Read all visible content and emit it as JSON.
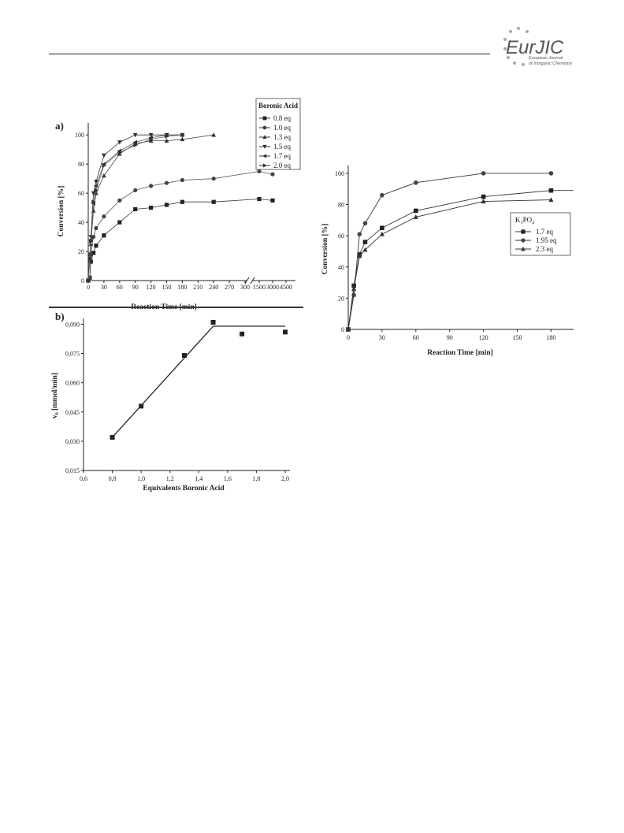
{
  "journal": {
    "logo_text": "EurJIC",
    "subtitle_1": "European Journal",
    "subtitle_2": "of Inorganic Chemistry"
  },
  "chart_data": [
    {
      "id": "a",
      "type": "scatter",
      "panel_label": "a)",
      "xlabel": "Reaction Time [min]",
      "ylabel": "Conversion [%]",
      "ylim": [
        0,
        105
      ],
      "x_broken_axis": true,
      "x_ticks_first_segment": [
        "0",
        "30",
        "60",
        "90",
        "120",
        "150",
        "180",
        "210",
        "240",
        "270",
        "300"
      ],
      "x_ticks_second_segment": [
        "1500",
        "3000",
        "4500"
      ],
      "y_ticks": [
        "0",
        "20",
        "40",
        "60",
        "80",
        "100"
      ],
      "legend_title": "Boronic Acid",
      "legend_position": "top-right",
      "series": [
        {
          "name": "0.8 eq",
          "marker": "square",
          "connected": true,
          "x": [
            0,
            3,
            5,
            10,
            15,
            30,
            60,
            90,
            120,
            150,
            180,
            240,
            1500,
            3000
          ],
          "y": [
            0,
            2,
            13,
            19,
            24,
            31,
            40,
            49,
            50,
            52,
            54,
            54,
            56,
            55
          ]
        },
        {
          "name": "1.0 eq",
          "marker": "circle",
          "connected": true,
          "x": [
            0,
            3,
            5,
            10,
            15,
            30,
            60,
            90,
            120,
            150,
            180,
            240,
            1500,
            3000
          ],
          "y": [
            0,
            2,
            18,
            30,
            36,
            44,
            55,
            62,
            65,
            67,
            69,
            70,
            75,
            73
          ]
        },
        {
          "name": "1.3 eq",
          "marker": "triangle-up",
          "connected": true,
          "x": [
            0,
            3,
            5,
            10,
            15,
            30,
            60,
            90,
            120,
            150,
            180,
            240
          ],
          "y": [
            0,
            14,
            25,
            48,
            60,
            72,
            87,
            94,
            96,
            96,
            97,
            100
          ]
        },
        {
          "name": "1.5 eq",
          "marker": "triangle-down",
          "connected": true,
          "x": [
            0,
            3,
            5,
            10,
            15,
            30,
            60,
            90,
            120,
            150,
            180
          ],
          "y": [
            0,
            18,
            30,
            60,
            68,
            86,
            95,
            100,
            100,
            100,
            100
          ]
        },
        {
          "name": "1.7 eq",
          "marker": "triangle-left",
          "connected": true,
          "x": [
            0,
            3,
            5,
            10,
            15,
            30,
            60,
            90,
            120,
            150,
            180
          ],
          "y": [
            0,
            17,
            28,
            53,
            65,
            80,
            89,
            95,
            98,
            100,
            100
          ]
        },
        {
          "name": "2.0 eq",
          "marker": "triangle-right",
          "connected": true,
          "x": [
            0,
            3,
            5,
            10,
            15,
            30,
            60,
            90,
            120,
            150,
            180
          ],
          "y": [
            0,
            15,
            27,
            54,
            62,
            79,
            88,
            93,
            97,
            99,
            100
          ]
        }
      ]
    },
    {
      "id": "b",
      "type": "scatter",
      "panel_label": "b)",
      "xlabel": "Equivalents Boronic Acid",
      "ylabel": "v₀ [mmol/min]",
      "xlim": [
        0.6,
        2.0
      ],
      "ylim": [
        0.015,
        0.093
      ],
      "x_ticks": [
        "0,6",
        "0,8",
        "1,0",
        "1,2",
        "1,4",
        "1,6",
        "1,8",
        "2,0"
      ],
      "y_ticks": [
        "0,015",
        "0,030",
        "0,045",
        "0,060",
        "0,075",
        "0,090"
      ],
      "series": [
        {
          "name": "",
          "marker": "square",
          "connected": false,
          "x": [
            0.8,
            1.0,
            1.3,
            1.5,
            1.7,
            2.0
          ],
          "y": [
            0.032,
            0.048,
            0.074,
            0.091,
            0.085,
            0.086
          ]
        }
      ],
      "fit_line": {
        "x": [
          0.8,
          1.5,
          2.0
        ],
        "y": [
          0.032,
          0.089,
          0.089
        ]
      }
    },
    {
      "id": "c",
      "type": "line",
      "xlabel": "Reaction Time [min]",
      "ylabel": "Conversion [%]",
      "xlim": [
        0,
        200
      ],
      "ylim": [
        0,
        105
      ],
      "x_ticks": [
        "0",
        "30",
        "60",
        "90",
        "120",
        "150",
        "180"
      ],
      "y_ticks": [
        "0",
        "20",
        "40",
        "60",
        "80",
        "100"
      ],
      "legend_title": "K₃PO₄",
      "legend_position": "right",
      "series": [
        {
          "name": "1.7 eq",
          "marker": "square",
          "x": [
            0,
            5,
            10,
            15,
            30,
            60,
            120,
            180,
            200
          ],
          "y": [
            0,
            28,
            48,
            56,
            65,
            76,
            85,
            89,
            89
          ]
        },
        {
          "name": "1.95 eq",
          "marker": "circle",
          "x": [
            0,
            5,
            10,
            15,
            30,
            60,
            120,
            180
          ],
          "y": [
            0,
            22,
            61,
            68,
            86,
            94,
            100,
            100
          ]
        },
        {
          "name": "2.3 eq",
          "marker": "triangle-up",
          "x": [
            0,
            5,
            10,
            15,
            30,
            60,
            120,
            180
          ],
          "y": [
            0,
            26,
            47,
            51,
            61,
            72,
            82,
            83
          ]
        }
      ]
    }
  ]
}
